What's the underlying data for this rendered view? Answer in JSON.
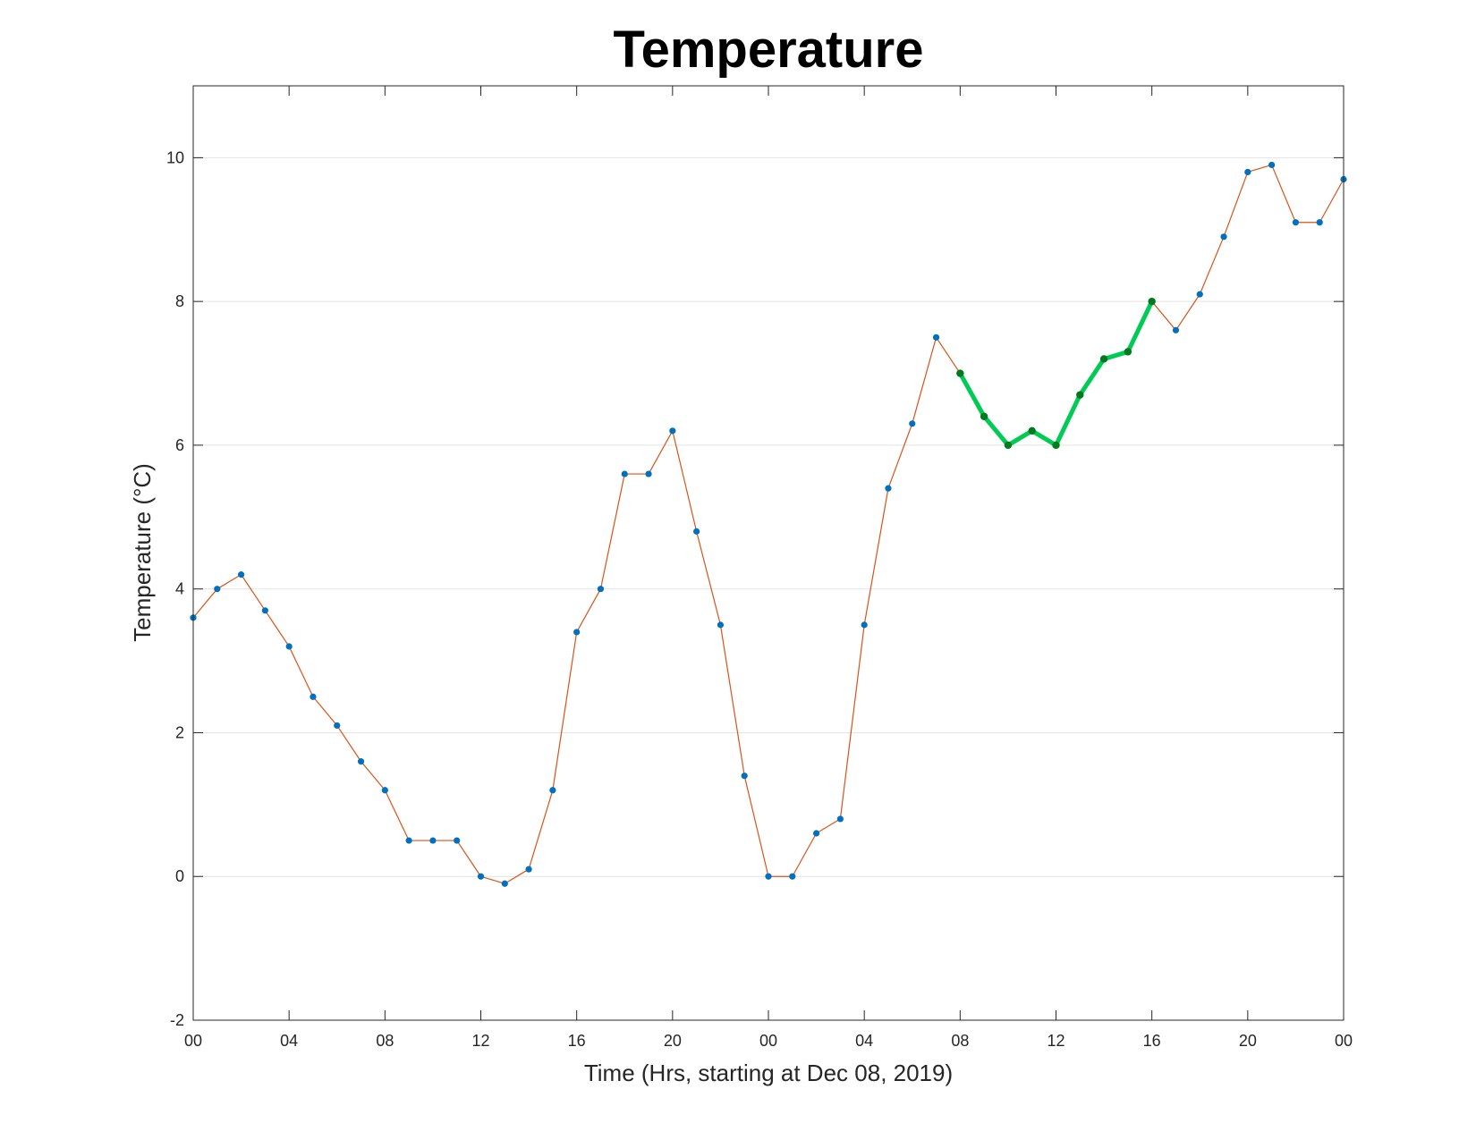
{
  "chart_data": {
    "type": "line",
    "title": "Temperature",
    "xlabel": "Time (Hrs, starting at Dec 08, 2019)",
    "ylabel": "Temperature (°C)",
    "x_unit": "hours",
    "xlim": [
      0,
      48
    ],
    "ylim": [
      -2,
      11
    ],
    "y_ticks": [
      -2,
      0,
      2,
      4,
      6,
      8,
      10
    ],
    "x_ticks": [
      {
        "x": 0,
        "label": "00"
      },
      {
        "x": 4,
        "label": "04"
      },
      {
        "x": 8,
        "label": "08"
      },
      {
        "x": 12,
        "label": "12"
      },
      {
        "x": 16,
        "label": "16"
      },
      {
        "x": 20,
        "label": "20"
      },
      {
        "x": 24,
        "label": "00"
      },
      {
        "x": 28,
        "label": "04"
      },
      {
        "x": 32,
        "label": "08"
      },
      {
        "x": 36,
        "label": "12"
      },
      {
        "x": 40,
        "label": "16"
      },
      {
        "x": 44,
        "label": "20"
      },
      {
        "x": 48,
        "label": "00"
      }
    ],
    "grid": "horizontal",
    "series": [
      {
        "x": [
          0,
          1,
          2,
          3,
          4,
          5,
          6,
          7,
          8,
          9,
          10,
          11,
          12,
          13,
          14,
          15,
          16,
          17,
          18,
          19,
          20,
          21,
          22,
          23,
          24,
          25,
          26,
          27,
          28,
          29,
          30,
          31,
          32,
          33,
          34,
          35,
          36,
          37,
          38,
          39,
          40,
          41,
          42,
          43,
          44,
          45,
          46,
          47,
          48
        ],
        "values": [
          3.6,
          4.0,
          4.2,
          3.7,
          3.2,
          2.5,
          2.1,
          1.6,
          1.2,
          0.5,
          0.5,
          0.5,
          0.0,
          -0.1,
          0.1,
          1.2,
          3.4,
          4.0,
          5.6,
          5.6,
          6.2,
          4.8,
          3.5,
          1.4,
          0.0,
          0.0,
          0.6,
          0.8,
          3.5,
          5.4,
          6.3,
          7.5,
          7.0,
          6.4,
          6.0,
          6.2,
          6.0,
          6.7,
          7.2,
          7.3,
          8.0,
          7.6,
          8.1,
          8.9,
          9.8,
          9.9,
          9.1,
          9.1,
          9.7
        ],
        "line_color": "#d95319",
        "marker_color": "#0072bd"
      },
      {
        "x": [
          32,
          33,
          34,
          35,
          36,
          37,
          38,
          39,
          40
        ],
        "values": [
          7.0,
          6.4,
          6.0,
          6.2,
          6.0,
          6.7,
          7.2,
          7.3,
          8.0
        ],
        "line_color": "#00cc55",
        "marker_color": "#007a1f",
        "highlight": true
      }
    ]
  }
}
